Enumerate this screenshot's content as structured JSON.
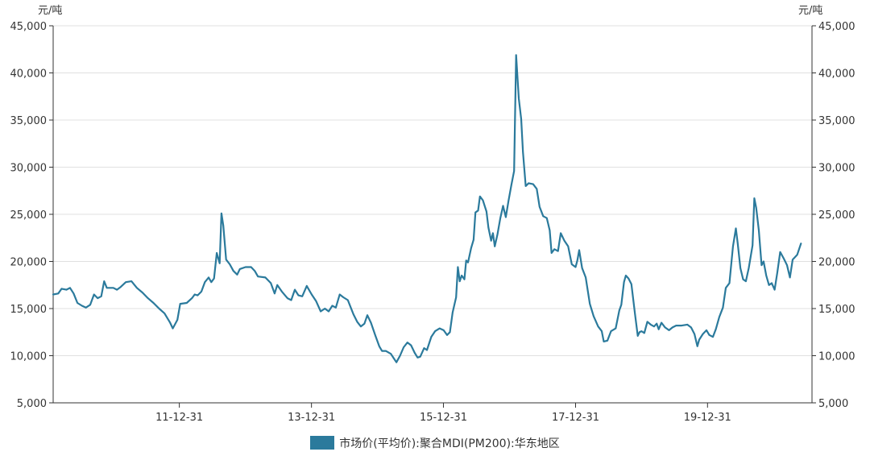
{
  "chart_data": {
    "type": "line",
    "y_unit_left": "元/吨",
    "y_unit_right": "元/吨",
    "ylim": [
      5000,
      45000
    ],
    "y_ticks": [
      5000,
      10000,
      15000,
      20000,
      25000,
      30000,
      35000,
      40000,
      45000
    ],
    "y_tick_labels": [
      "5,000",
      "10,000",
      "15,000",
      "20,000",
      "25,000",
      "30,000",
      "35,000",
      "40,000",
      "45,000"
    ],
    "xlim": [
      "2010-02-01",
      "2021-07-31"
    ],
    "x_ticks": [
      "2011-12-31",
      "2013-12-31",
      "2015-12-31",
      "2017-12-31",
      "2019-12-31"
    ],
    "x_tick_labels": [
      "11-12-31",
      "13-12-31",
      "15-12-31",
      "17-12-31",
      "19-12-31"
    ],
    "grid": "horizontal",
    "legend_position": "bottom-center",
    "colors": {
      "series": "#2b7a9c",
      "grid": "#e0e0e0",
      "axis": "#333333"
    },
    "series": [
      {
        "name": "市场价(平均价):聚合MDI(PM200):华东地区",
        "points": [
          [
            "2010-02-01",
            16500
          ],
          [
            "2010-03-01",
            16600
          ],
          [
            "2010-03-20",
            17100
          ],
          [
            "2010-04-15",
            17000
          ],
          [
            "2010-05-05",
            17200
          ],
          [
            "2010-05-25",
            16600
          ],
          [
            "2010-06-15",
            15600
          ],
          [
            "2010-07-10",
            15300
          ],
          [
            "2010-08-01",
            15100
          ],
          [
            "2010-08-25",
            15400
          ],
          [
            "2010-09-15",
            16500
          ],
          [
            "2010-10-05",
            16100
          ],
          [
            "2010-10-25",
            16300
          ],
          [
            "2010-11-10",
            17900
          ],
          [
            "2010-11-25",
            17200
          ],
          [
            "2010-12-31",
            17200
          ],
          [
            "2011-01-20",
            17000
          ],
          [
            "2011-02-10",
            17300
          ],
          [
            "2011-03-10",
            17800
          ],
          [
            "2011-04-10",
            17900
          ],
          [
            "2011-05-10",
            17200
          ],
          [
            "2011-06-10",
            16700
          ],
          [
            "2011-07-10",
            16100
          ],
          [
            "2011-08-10",
            15600
          ],
          [
            "2011-09-10",
            15000
          ],
          [
            "2011-10-10",
            14500
          ],
          [
            "2011-11-10",
            13500
          ],
          [
            "2011-11-25",
            12900
          ],
          [
            "2011-12-20",
            13800
          ],
          [
            "2012-01-05",
            15500
          ],
          [
            "2012-02-10",
            15600
          ],
          [
            "2012-03-10",
            16100
          ],
          [
            "2012-03-25",
            16500
          ],
          [
            "2012-04-10",
            16400
          ],
          [
            "2012-05-01",
            16800
          ],
          [
            "2012-05-20",
            17800
          ],
          [
            "2012-06-10",
            18300
          ],
          [
            "2012-06-25",
            17800
          ],
          [
            "2012-07-10",
            18200
          ],
          [
            "2012-07-25",
            20900
          ],
          [
            "2012-08-10",
            19800
          ],
          [
            "2012-08-20",
            25100
          ],
          [
            "2012-08-30",
            23800
          ],
          [
            "2012-09-15",
            20200
          ],
          [
            "2012-10-05",
            19700
          ],
          [
            "2012-10-25",
            19000
          ],
          [
            "2012-11-15",
            18600
          ],
          [
            "2012-11-30",
            19200
          ],
          [
            "2012-12-31",
            19400
          ],
          [
            "2013-01-31",
            19400
          ],
          [
            "2013-02-20",
            19000
          ],
          [
            "2013-03-10",
            18400
          ],
          [
            "2013-04-20",
            18300
          ],
          [
            "2013-05-20",
            17700
          ],
          [
            "2013-06-10",
            16600
          ],
          [
            "2013-06-25",
            17500
          ],
          [
            "2013-07-20",
            16800
          ],
          [
            "2013-08-20",
            16100
          ],
          [
            "2013-09-10",
            15900
          ],
          [
            "2013-09-30",
            17000
          ],
          [
            "2013-10-20",
            16400
          ],
          [
            "2013-11-10",
            16300
          ],
          [
            "2013-12-05",
            17400
          ],
          [
            "2014-01-01",
            16500
          ],
          [
            "2014-01-25",
            15800
          ],
          [
            "2014-02-20",
            14700
          ],
          [
            "2014-03-15",
            15000
          ],
          [
            "2014-04-05",
            14700
          ],
          [
            "2014-04-25",
            15300
          ],
          [
            "2014-05-15",
            15100
          ],
          [
            "2014-06-05",
            16500
          ],
          [
            "2014-06-25",
            16200
          ],
          [
            "2014-07-20",
            15900
          ],
          [
            "2014-08-20",
            14400
          ],
          [
            "2014-09-10",
            13600
          ],
          [
            "2014-09-30",
            13100
          ],
          [
            "2014-10-20",
            13400
          ],
          [
            "2014-11-05",
            14300
          ],
          [
            "2014-11-25",
            13500
          ],
          [
            "2014-12-20",
            12100
          ],
          [
            "2015-01-10",
            11000
          ],
          [
            "2015-01-25",
            10500
          ],
          [
            "2015-02-15",
            10500
          ],
          [
            "2015-03-15",
            10200
          ],
          [
            "2015-04-01",
            9700
          ],
          [
            "2015-04-15",
            9300
          ],
          [
            "2015-05-05",
            10000
          ],
          [
            "2015-05-25",
            10900
          ],
          [
            "2015-06-15",
            11400
          ],
          [
            "2015-07-05",
            11100
          ],
          [
            "2015-07-25",
            10300
          ],
          [
            "2015-08-10",
            9800
          ],
          [
            "2015-08-25",
            9900
          ],
          [
            "2015-09-15",
            10800
          ],
          [
            "2015-10-01",
            10600
          ],
          [
            "2015-10-25",
            12000
          ],
          [
            "2015-11-15",
            12600
          ],
          [
            "2015-12-10",
            12900
          ],
          [
            "2016-01-01",
            12700
          ],
          [
            "2016-01-20",
            12200
          ],
          [
            "2016-02-05",
            12500
          ],
          [
            "2016-02-20",
            14600
          ],
          [
            "2016-03-10",
            16200
          ],
          [
            "2016-03-20",
            19400
          ],
          [
            "2016-03-30",
            17900
          ],
          [
            "2016-04-10",
            18500
          ],
          [
            "2016-04-25",
            18100
          ],
          [
            "2016-05-05",
            20100
          ],
          [
            "2016-05-15",
            19900
          ],
          [
            "2016-06-01",
            21400
          ],
          [
            "2016-06-15",
            22300
          ],
          [
            "2016-06-25",
            25200
          ],
          [
            "2016-07-10",
            25400
          ],
          [
            "2016-07-20",
            26900
          ],
          [
            "2016-08-05",
            26500
          ],
          [
            "2016-08-25",
            25300
          ],
          [
            "2016-09-05",
            23600
          ],
          [
            "2016-09-20",
            22200
          ],
          [
            "2016-09-30",
            23000
          ],
          [
            "2016-10-10",
            21600
          ],
          [
            "2016-10-25",
            22900
          ],
          [
            "2016-11-10",
            24600
          ],
          [
            "2016-11-25",
            25900
          ],
          [
            "2016-12-10",
            24700
          ],
          [
            "2016-12-25",
            26400
          ],
          [
            "2017-01-10",
            28100
          ],
          [
            "2017-01-25",
            29600
          ],
          [
            "2017-02-05",
            41900
          ],
          [
            "2017-02-20",
            37300
          ],
          [
            "2017-03-05",
            35100
          ],
          [
            "2017-03-15",
            31600
          ],
          [
            "2017-03-30",
            28000
          ],
          [
            "2017-04-15",
            28300
          ],
          [
            "2017-05-10",
            28200
          ],
          [
            "2017-05-30",
            27700
          ],
          [
            "2017-06-15",
            25800
          ],
          [
            "2017-07-05",
            24800
          ],
          [
            "2017-07-25",
            24600
          ],
          [
            "2017-08-10",
            23300
          ],
          [
            "2017-08-20",
            20900
          ],
          [
            "2017-09-05",
            21300
          ],
          [
            "2017-09-25",
            21100
          ],
          [
            "2017-10-10",
            23000
          ],
          [
            "2017-10-30",
            22200
          ],
          [
            "2017-11-20",
            21600
          ],
          [
            "2017-12-10",
            19700
          ],
          [
            "2017-12-31",
            19400
          ],
          [
            "2018-01-10",
            20100
          ],
          [
            "2018-01-20",
            21200
          ],
          [
            "2018-02-05",
            19300
          ],
          [
            "2018-02-25",
            18300
          ],
          [
            "2018-03-20",
            15500
          ],
          [
            "2018-04-10",
            14200
          ],
          [
            "2018-05-05",
            13100
          ],
          [
            "2018-05-25",
            12600
          ],
          [
            "2018-06-05",
            11500
          ],
          [
            "2018-06-25",
            11600
          ],
          [
            "2018-07-15",
            12600
          ],
          [
            "2018-08-10",
            12900
          ],
          [
            "2018-08-30",
            14800
          ],
          [
            "2018-09-10",
            15400
          ],
          [
            "2018-09-25",
            17800
          ],
          [
            "2018-10-05",
            18500
          ],
          [
            "2018-10-20",
            18200
          ],
          [
            "2018-11-05",
            17600
          ],
          [
            "2018-11-25",
            14400
          ],
          [
            "2018-12-10",
            12100
          ],
          [
            "2018-12-20",
            12500
          ],
          [
            "2018-12-31",
            12600
          ],
          [
            "2019-01-15",
            12400
          ],
          [
            "2019-02-01",
            13600
          ],
          [
            "2019-02-20",
            13300
          ],
          [
            "2019-03-10",
            13100
          ],
          [
            "2019-03-25",
            13400
          ],
          [
            "2019-04-05",
            12800
          ],
          [
            "2019-04-20",
            13500
          ],
          [
            "2019-05-10",
            13000
          ],
          [
            "2019-06-01",
            12700
          ],
          [
            "2019-06-20",
            13000
          ],
          [
            "2019-07-10",
            13200
          ],
          [
            "2019-08-10",
            13200
          ],
          [
            "2019-09-10",
            13300
          ],
          [
            "2019-10-01",
            13000
          ],
          [
            "2019-10-20",
            12300
          ],
          [
            "2019-11-05",
            11000
          ],
          [
            "2019-11-15",
            11700
          ],
          [
            "2019-12-05",
            12300
          ],
          [
            "2019-12-25",
            12700
          ],
          [
            "2020-01-10",
            12200
          ],
          [
            "2020-01-30",
            12000
          ],
          [
            "2020-02-15",
            12800
          ],
          [
            "2020-03-05",
            14100
          ],
          [
            "2020-03-25",
            15100
          ],
          [
            "2020-04-10",
            17200
          ],
          [
            "2020-04-30",
            17700
          ],
          [
            "2020-05-20",
            21600
          ],
          [
            "2020-06-05",
            23500
          ],
          [
            "2020-06-15",
            21900
          ],
          [
            "2020-06-30",
            19300
          ],
          [
            "2020-07-15",
            18100
          ],
          [
            "2020-07-30",
            17900
          ],
          [
            "2020-08-15",
            19300
          ],
          [
            "2020-09-05",
            21700
          ],
          [
            "2020-09-15",
            26700
          ],
          [
            "2020-09-25",
            25700
          ],
          [
            "2020-10-10",
            23300
          ],
          [
            "2020-10-25",
            19600
          ],
          [
            "2020-11-05",
            20000
          ],
          [
            "2020-11-20",
            18500
          ],
          [
            "2020-12-05",
            17500
          ],
          [
            "2020-12-20",
            17700
          ],
          [
            "2021-01-05",
            17000
          ],
          [
            "2021-01-20",
            18800
          ],
          [
            "2021-02-05",
            21000
          ],
          [
            "2021-02-25",
            20300
          ],
          [
            "2021-03-15",
            19600
          ],
          [
            "2021-03-31",
            18300
          ],
          [
            "2021-04-15",
            20200
          ],
          [
            "2021-05-10",
            20700
          ],
          [
            "2021-05-31",
            21900
          ]
        ]
      }
    ]
  }
}
